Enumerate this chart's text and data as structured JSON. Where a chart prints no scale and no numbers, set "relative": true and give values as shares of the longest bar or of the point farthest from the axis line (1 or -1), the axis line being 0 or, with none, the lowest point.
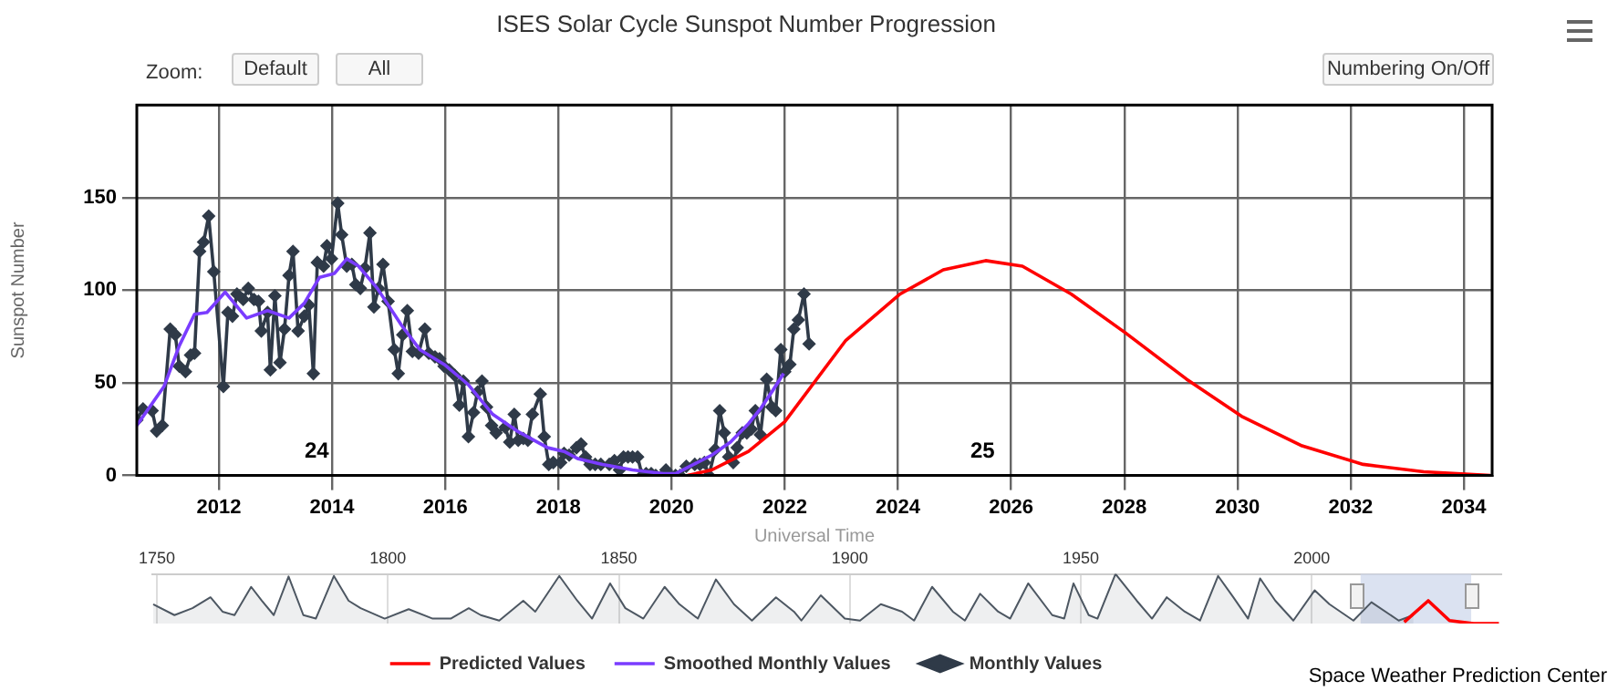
{
  "chart_data": [
    {
      "type": "line",
      "title": "ISES Solar Cycle Sunspot Number Progression",
      "xlabel": "Universal Time",
      "ylabel": "Sunspot Number",
      "xlim": [
        2010.55,
        2034.5
      ],
      "xticks": [
        2012,
        2014,
        2016,
        2018,
        2020,
        2022,
        2024,
        2026,
        2028,
        2030,
        2032,
        2034
      ],
      "ylim": [
        0,
        200
      ],
      "yticks": [
        0,
        50,
        100,
        150
      ],
      "grid": true,
      "legend": "bottom",
      "series": [
        {
          "name": "Monthly Values",
          "marker": "diamond",
          "color": "#2f3a48",
          "x": [
            2010.55,
            2010.66,
            2010.82,
            2010.9,
            2011.0,
            2011.14,
            2011.23,
            2011.3,
            2011.41,
            2011.5,
            2011.57,
            2011.66,
            2011.73,
            2011.82,
            2011.91,
            2012.08,
            2012.16,
            2012.24,
            2012.32,
            2012.43,
            2012.52,
            2012.62,
            2012.7,
            2012.75,
            2012.86,
            2012.91,
            2012.99,
            2013.08,
            2013.16,
            2013.24,
            2013.31,
            2013.4,
            2013.51,
            2013.59,
            2013.67,
            2013.74,
            2013.85,
            2013.91,
            2013.99,
            2014.1,
            2014.17,
            2014.26,
            2014.35,
            2014.42,
            2014.5,
            2014.58,
            2014.67,
            2014.74,
            2014.82,
            2014.9,
            2014.99,
            2015.1,
            2015.17,
            2015.25,
            2015.33,
            2015.42,
            2015.53,
            2015.64,
            2015.71,
            2015.82,
            2015.9,
            2015.98,
            2016.07,
            2016.17,
            2016.25,
            2016.32,
            2016.41,
            2016.5,
            2016.57,
            2016.65,
            2016.73,
            2016.82,
            2016.9,
            2017.06,
            2017.14,
            2017.22,
            2017.29,
            2017.38,
            2017.46,
            2017.54,
            2017.68,
            2017.75,
            2017.83,
            2017.91,
            2018.04,
            2018.1,
            2018.19,
            2018.32,
            2018.4,
            2018.48,
            2018.56,
            2018.65,
            2018.75,
            2018.9,
            2018.99,
            2019.08,
            2019.15,
            2019.23,
            2019.31,
            2019.4,
            2019.48,
            2019.55,
            2019.64,
            2019.72,
            2019.9,
            2019.98,
            2020.07,
            2020.15,
            2020.26,
            2020.41,
            2020.5,
            2020.58,
            2020.66,
            2020.77,
            2020.85,
            2020.93,
            2021.01,
            2021.09,
            2021.16,
            2021.25,
            2021.33,
            2021.41,
            2021.48,
            2021.57,
            2021.68,
            2021.77,
            2021.84,
            2021.93,
            2022.0,
            2022.09,
            2022.16,
            2022.24,
            2022.34,
            2022.43
          ],
          "values": [
            30,
            36,
            35,
            24,
            27,
            79,
            76,
            59,
            56,
            65,
            66,
            121,
            126,
            140,
            110,
            48,
            88,
            86,
            98,
            95,
            101,
            95,
            94,
            78,
            88,
            57,
            97,
            61,
            79,
            108,
            121,
            78,
            86,
            92,
            55,
            115,
            113,
            124,
            117,
            147,
            130,
            113,
            114,
            103,
            101,
            112,
            131,
            91,
            101,
            114,
            94,
            68,
            55,
            76,
            89,
            67,
            66,
            79,
            66,
            64,
            63,
            59,
            57,
            54,
            38,
            51,
            21,
            34,
            45,
            51,
            37,
            27,
            23,
            26,
            18,
            33,
            19,
            20,
            19,
            33,
            44,
            21,
            6,
            7,
            7,
            12,
            11,
            15,
            17,
            10,
            6,
            6,
            6,
            6,
            8,
            3,
            10,
            10,
            10,
            10,
            0,
            1,
            1,
            0,
            3,
            0,
            0,
            0,
            5,
            6,
            6,
            7,
            0,
            14,
            35,
            23,
            10,
            7,
            15,
            23,
            23,
            25,
            35,
            22,
            52,
            37,
            35,
            68,
            56,
            60,
            79,
            84,
            98,
            71
          ]
        },
        {
          "name": "Smoothed Monthly Values",
          "marker": "none",
          "color": "#7a3cff",
          "x": [
            2010.55,
            2011.03,
            2011.3,
            2011.57,
            2011.79,
            2012.11,
            2012.49,
            2012.86,
            2013.24,
            2013.51,
            2013.78,
            2014.04,
            2014.26,
            2014.47,
            2014.8,
            2015.23,
            2015.55,
            2015.98,
            2016.41,
            2016.84,
            2017.27,
            2017.81,
            2018.1,
            2018.35,
            2018.78,
            2019.31,
            2019.85,
            2020.07,
            2020.39,
            2020.71,
            2021.04,
            2021.36,
            2021.57,
            2021.79,
            2021.98
          ],
          "values": [
            27,
            48,
            70,
            87,
            88,
            99,
            85,
            89,
            85,
            93,
            107,
            109,
            117,
            113,
            101,
            81,
            68,
            60,
            49,
            33,
            24,
            15,
            13,
            9,
            6,
            3,
            1,
            1,
            6,
            11,
            18,
            28,
            36,
            46,
            55
          ]
        },
        {
          "name": "Predicted Values",
          "marker": "none",
          "color": "#ff0000",
          "x": [
            2020.28,
            2020.71,
            2021.36,
            2022.0,
            2023.08,
            2024.04,
            2024.8,
            2025.55,
            2026.2,
            2027.06,
            2028.02,
            2029.1,
            2030.07,
            2031.14,
            2032.22,
            2033.29,
            2034.47
          ],
          "values": [
            0,
            3,
            13,
            29,
            73,
            98,
            111,
            116,
            113,
            98,
            77,
            52,
            32,
            16,
            6,
            2,
            0
          ]
        }
      ],
      "annotations": [
        "24",
        "25",
        "Zoom:",
        "Default",
        "All",
        "Numbering On/Off",
        "Space Weather Prediction Center"
      ]
    },
    {
      "type": "line",
      "relative": true,
      "xlim": [
        1749,
        2041
      ],
      "xticks": [
        1750,
        1800,
        1850,
        1900,
        1950,
        2000
      ],
      "tick_labels": "x",
      "grid": "x",
      "legend": false,
      "bands": [
        {
          "axis": "x",
          "from": 2010.55,
          "to": 2034.5,
          "color": "#ccd6eb"
        }
      ],
      "series": [
        {
          "type": "area",
          "marker": "none",
          "color": "#4d5762",
          "x": [
            1749.2,
            1753.8,
            1757.7,
            1761.6,
            1764.2,
            1766.8,
            1770.4,
            1772.7,
            1775.3,
            1778.5,
            1781.7,
            1784.4,
            1788.3,
            1791.5,
            1794.1,
            1799.3,
            1804.5,
            1809.7,
            1813.6,
            1817.5,
            1820.1,
            1824.1,
            1829.3,
            1831.9,
            1837.1,
            1841,
            1844.2,
            1848.1,
            1851.4,
            1855.3,
            1859.9,
            1863.1,
            1867.1,
            1871,
            1874.9,
            1878.8,
            1884,
            1887.9,
            1889.5,
            1893.7,
            1898.9,
            1902.2,
            1906.7,
            1911.3,
            1913.9,
            1917.8,
            1922.3,
            1924.9,
            1928.2,
            1932.1,
            1934.7,
            1938.6,
            1943.8,
            1946.4,
            1948.4,
            1951.7,
            1953.6,
            1957.5,
            1962.1,
            1965.4,
            1968.6,
            1972.5,
            1975.8,
            1979.7,
            1983,
            1986.2,
            1988.8,
            1992.1,
            1996,
            2000.6,
            2003.8,
            2009,
            2012.9,
            2018.8,
            2022
          ],
          "values": [
            0.39,
            0.17,
            0.31,
            0.53,
            0.24,
            0.17,
            0.74,
            0.46,
            0.17,
            0.95,
            0.17,
            0.1,
            0.96,
            0.46,
            0.31,
            0.1,
            0.29,
            0.1,
            0.1,
            0.31,
            0.17,
            0.06,
            0.46,
            0.24,
            0.96,
            0.46,
            0.1,
            0.81,
            0.31,
            0.1,
            0.74,
            0.39,
            0.1,
            0.89,
            0.39,
            0.06,
            0.53,
            0.24,
            0.06,
            0.57,
            0.1,
            0.06,
            0.39,
            0.24,
            0.06,
            0.74,
            0.24,
            0.06,
            0.6,
            0.24,
            0.1,
            0.81,
            0.17,
            0.1,
            0.81,
            0.17,
            0.1,
            1,
            0.46,
            0.1,
            0.53,
            0.24,
            0.06,
            0.96,
            0.53,
            0.1,
            0.91,
            0.46,
            0.06,
            0.67,
            0.39,
            0.06,
            0.43,
            0.06,
            0.17
          ]
        },
        {
          "marker": "none",
          "color": "#ff0000",
          "x": [
            2020,
            2025.2,
            2029.8,
            2035,
            2040.5
          ],
          "values": [
            0.03,
            0.46,
            0.06,
            0,
            0
          ]
        }
      ]
    }
  ]
}
